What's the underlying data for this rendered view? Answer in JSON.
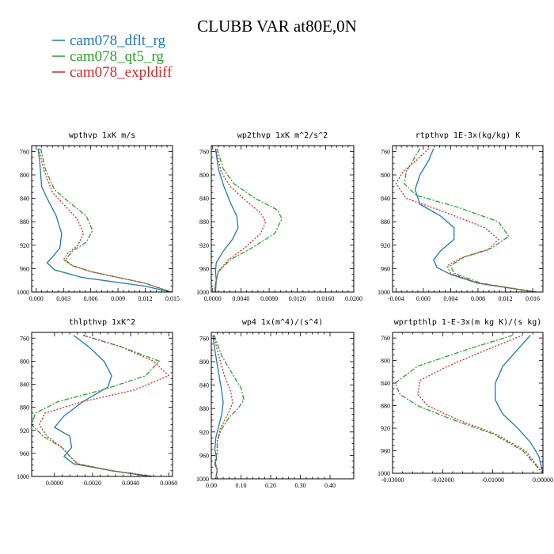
{
  "figure": {
    "title": "CLUBB VAR at80E,0N",
    "legend": [
      {
        "label": "cam078_dflt_rg",
        "color": "#1f77b4"
      },
      {
        "label": "cam078_qt5_rg",
        "color": "#2ca02c"
      },
      {
        "label": "cam078_expldiff",
        "color": "#d62728"
      }
    ]
  },
  "chart_data": [
    {
      "type": "line",
      "title": "wpthvp  1xK m/s",
      "xlim": [
        -0.0005,
        0.015
      ],
      "ylim": [
        1000,
        750
      ],
      "xticks": [
        0.0,
        0.003,
        0.006,
        0.009,
        0.012,
        0.015
      ],
      "xtick_labels": [
        "0.000",
        "0.003",
        "0.006",
        "0.009",
        "0.012",
        "0.015"
      ],
      "yticks": [
        760,
        800,
        840,
        880,
        920,
        960,
        1000
      ],
      "ytick_labels": [
        "760",
        "800",
        "840",
        "880",
        "920",
        "960",
        "1000"
      ],
      "series": [
        {
          "name": "cam078_dflt_rg",
          "color": "#1f77b4",
          "dash": "",
          "x": [
            0.0002,
            0.0004,
            0.0006,
            0.0012,
            0.0022,
            0.0028,
            0.0026,
            0.0018,
            0.0012,
            0.002,
            0.005,
            0.012,
            0.0148
          ],
          "y": [
            755,
            780,
            820,
            840,
            870,
            900,
            925,
            940,
            950,
            962,
            975,
            990,
            1000
          ]
        },
        {
          "name": "cam078_qt5_rg",
          "color": "#2ca02c",
          "dash": "6,2,2,2",
          "x": [
            0.0005,
            0.001,
            0.002,
            0.0035,
            0.0055,
            0.0062,
            0.0055,
            0.004,
            0.0032,
            0.004,
            0.006,
            0.012,
            0.0148
          ],
          "y": [
            755,
            790,
            825,
            845,
            870,
            895,
            915,
            930,
            945,
            955,
            965,
            985,
            1000
          ]
        },
        {
          "name": "cam078_expldiff",
          "color": "#d62728",
          "dash": "2,2",
          "x": [
            0.0003,
            0.0008,
            0.0018,
            0.003,
            0.0045,
            0.0052,
            0.0046,
            0.0034,
            0.003,
            0.004,
            0.006,
            0.012,
            0.0149
          ],
          "y": [
            755,
            790,
            830,
            850,
            875,
            900,
            920,
            935,
            945,
            955,
            965,
            985,
            1000
          ]
        }
      ]
    },
    {
      "type": "line",
      "title": "wp2thvp  1xK m^2/s^2",
      "xlim": [
        -0.0002,
        0.02
      ],
      "ylim": [
        1000,
        750
      ],
      "xticks": [
        0.0,
        0.004,
        0.008,
        0.012,
        0.016,
        0.02
      ],
      "xtick_labels": [
        "0.0000",
        "0.0040",
        "0.0080",
        "0.0120",
        "0.0160",
        "0.0200"
      ],
      "yticks": [
        760,
        800,
        840,
        880,
        920,
        960,
        1000
      ],
      "ytick_labels": [
        "760",
        "800",
        "840",
        "880",
        "920",
        "960",
        "1000"
      ],
      "series": [
        {
          "name": "cam078_dflt_rg",
          "color": "#1f77b4",
          "dash": "",
          "x": [
            0.0004,
            0.0008,
            0.0016,
            0.0026,
            0.0034,
            0.0036,
            0.0028,
            0.0015,
            0.0005,
            0.0004,
            0.0005,
            0.0004
          ],
          "y": [
            755,
            790,
            820,
            850,
            870,
            890,
            910,
            930,
            950,
            965,
            980,
            1000
          ]
        },
        {
          "name": "cam078_qt5_rg",
          "color": "#2ca02c",
          "dash": "6,2,2,2",
          "x": [
            0.0006,
            0.0015,
            0.003,
            0.006,
            0.0092,
            0.0098,
            0.0088,
            0.0055,
            0.0025,
            0.0008,
            0.0004,
            0.0003
          ],
          "y": [
            755,
            790,
            815,
            840,
            860,
            875,
            900,
            925,
            945,
            965,
            985,
            1000
          ]
        },
        {
          "name": "cam078_expldiff",
          "color": "#d62728",
          "dash": "2,2",
          "x": [
            0.0004,
            0.0012,
            0.0025,
            0.0048,
            0.0068,
            0.0075,
            0.0068,
            0.0045,
            0.0022,
            0.0008,
            0.0004,
            0.0003
          ],
          "y": [
            755,
            795,
            820,
            845,
            865,
            880,
            900,
            925,
            945,
            965,
            985,
            1000
          ]
        }
      ]
    },
    {
      "type": "line",
      "title": "rtpthvp  1E-3x(kg/kg) K",
      "xlim": [
        -0.0045,
        0.0175
      ],
      "ylim": [
        1000,
        750
      ],
      "xticks": [
        -0.004,
        0.0,
        0.004,
        0.008,
        0.012,
        0.016
      ],
      "xtick_labels": [
        "-0.004",
        "0.000",
        "0.004",
        "0.008",
        "0.012",
        "0.016"
      ],
      "yticks": [
        760,
        800,
        840,
        880,
        920,
        960,
        1000
      ],
      "ytick_labels": [
        "760",
        "800",
        "840",
        "880",
        "920",
        "960",
        "1000"
      ],
      "series": [
        {
          "name": "cam078_dflt_rg",
          "color": "#1f77b4",
          "dash": "",
          "x": [
            0.0015,
            0.0008,
            -0.0005,
            -0.0012,
            -0.0005,
            0.0025,
            0.0045,
            0.0045,
            0.0025,
            0.0015,
            0.002,
            0.004,
            0.008,
            0.0165
          ],
          "y": [
            755,
            775,
            800,
            825,
            850,
            870,
            890,
            910,
            930,
            945,
            958,
            970,
            985,
            1000
          ]
        },
        {
          "name": "cam078_qt5_rg",
          "color": "#2ca02c",
          "dash": "6,2,2,2",
          "x": [
            -0.0005,
            -0.0015,
            -0.0025,
            -0.0028,
            -0.001,
            0.005,
            0.011,
            0.0125,
            0.01,
            0.006,
            0.004,
            0.0045,
            0.0085,
            0.0165
          ],
          "y": [
            755,
            775,
            795,
            815,
            835,
            855,
            880,
            905,
            925,
            940,
            955,
            968,
            985,
            1000
          ]
        },
        {
          "name": "cam078_expldiff",
          "color": "#d62728",
          "dash": "2,2",
          "x": [
            0.0008,
            -0.001,
            -0.003,
            -0.004,
            -0.0025,
            0.0035,
            0.009,
            0.011,
            0.0095,
            0.0055,
            0.0035,
            0.004,
            0.008,
            0.0165
          ],
          "y": [
            755,
            775,
            795,
            815,
            840,
            865,
            890,
            910,
            928,
            942,
            955,
            968,
            985,
            1000
          ]
        }
      ]
    },
    {
      "type": "line",
      "title": "thlpthvp  1xK^2",
      "xlim": [
        -0.0012,
        0.0062
      ],
      "ylim": [
        1000,
        750
      ],
      "xticks": [
        0.0,
        0.002,
        0.004,
        0.006
      ],
      "xtick_labels": [
        "0.0000",
        "0.0020",
        "0.0040",
        "0.0060"
      ],
      "yticks": [
        760,
        800,
        840,
        880,
        920,
        960,
        1000
      ],
      "ytick_labels": [
        "760",
        "800",
        "840",
        "880",
        "920",
        "960",
        "1000"
      ],
      "series": [
        {
          "name": "cam078_dflt_rg",
          "color": "#1f77b4",
          "dash": "",
          "x": [
            0.001,
            0.0018,
            0.0026,
            0.003,
            0.0028,
            0.0015,
            0.0005,
            0.0,
            0.0008,
            0.0009,
            0.0005,
            0.001,
            0.003,
            0.005
          ],
          "y": [
            755,
            775,
            800,
            825,
            845,
            870,
            895,
            915,
            930,
            950,
            965,
            978,
            990,
            1000
          ]
        },
        {
          "name": "cam078_qt5_rg",
          "color": "#2ca02c",
          "dash": "6,2,2,2",
          "x": [
            0.0015,
            0.0035,
            0.0055,
            0.0048,
            0.0025,
            0.0002,
            -0.001,
            -0.0012,
            -0.0006,
            0.0004,
            0.0008,
            0.0012,
            0.003,
            0.0052
          ],
          "y": [
            755,
            775,
            800,
            825,
            850,
            870,
            890,
            910,
            930,
            950,
            965,
            978,
            990,
            1000
          ]
        },
        {
          "name": "cam078_expldiff",
          "color": "#d62728",
          "dash": "2,2",
          "x": [
            0.0015,
            0.0035,
            0.0052,
            0.006,
            0.0042,
            0.0015,
            -0.0005,
            -0.0008,
            -0.0004,
            0.0004,
            0.0008,
            0.0012,
            0.003,
            0.0052
          ],
          "y": [
            755,
            775,
            800,
            825,
            850,
            870,
            890,
            910,
            930,
            950,
            965,
            978,
            990,
            1000
          ]
        }
      ]
    },
    {
      "type": "line",
      "title": "wp4  1x(m^4)/(s^4)",
      "xlim": [
        0.0,
        0.48
      ],
      "ylim": [
        1000,
        750
      ],
      "xticks": [
        0.0,
        0.1,
        0.2,
        0.3,
        0.4
      ],
      "xtick_labels": [
        "0.00",
        "0.10",
        "0.20",
        "0.30",
        "0.40"
      ],
      "yticks": [
        760,
        800,
        840,
        880,
        920,
        960,
        1000
      ],
      "ytick_labels": [
        "760",
        "800",
        "840",
        "880",
        "920",
        "960",
        "1000"
      ],
      "series": [
        {
          "name": "cam078_dflt_rg",
          "color": "#1f77b4",
          "dash": "",
          "x": [
            0.005,
            0.015,
            0.025,
            0.035,
            0.04,
            0.035,
            0.025,
            0.015,
            0.012,
            0.018,
            0.012,
            0.02,
            0.015
          ],
          "y": [
            755,
            790,
            820,
            850,
            870,
            890,
            910,
            930,
            950,
            965,
            975,
            985,
            1000
          ]
        },
        {
          "name": "cam078_qt5_rg",
          "color": "#2ca02c",
          "dash": "6,2,2,2",
          "x": [
            0.01,
            0.035,
            0.07,
            0.1,
            0.11,
            0.09,
            0.06,
            0.035,
            0.02,
            0.02,
            0.012,
            0.02,
            0.015
          ],
          "y": [
            755,
            790,
            820,
            845,
            865,
            880,
            895,
            915,
            935,
            955,
            970,
            985,
            1000
          ]
        },
        {
          "name": "cam078_expldiff",
          "color": "#d62728",
          "dash": "2,2",
          "x": [
            0.008,
            0.025,
            0.045,
            0.065,
            0.072,
            0.06,
            0.045,
            0.03,
            0.02,
            0.02,
            0.012,
            0.02,
            0.015
          ],
          "y": [
            755,
            790,
            825,
            850,
            870,
            885,
            900,
            915,
            935,
            955,
            970,
            985,
            1000
          ]
        }
      ]
    },
    {
      "type": "line",
      "title": "wprtpthlp  1-E-3x(m kg K)/(s kg)",
      "xlim": [
        -0.03,
        0.0
      ],
      "ylim": [
        1000,
        750
      ],
      "xticks": [
        -0.03,
        -0.02,
        -0.01,
        0.0
      ],
      "xtick_labels": [
        "-0.03000",
        "-0.02000",
        "-0.01000",
        "0.00000"
      ],
      "yticks": [
        760,
        800,
        840,
        880,
        920,
        960,
        1000
      ],
      "ytick_labels": [
        "760",
        "800",
        "840",
        "880",
        "920",
        "960",
        "1000"
      ],
      "series": [
        {
          "name": "cam078_dflt_rg",
          "color": "#1f77b4",
          "dash": "",
          "x": [
            -0.0025,
            -0.005,
            -0.008,
            -0.0095,
            -0.0095,
            -0.008,
            -0.005,
            -0.0025,
            -0.0008,
            0.0
          ],
          "y": [
            755,
            780,
            810,
            840,
            870,
            895,
            920,
            945,
            970,
            1000
          ]
        },
        {
          "name": "cam078_qt5_rg",
          "color": "#2ca02c",
          "dash": "6,2,2,2",
          "x": [
            -0.006,
            -0.015,
            -0.025,
            -0.0295,
            -0.0285,
            -0.025,
            -0.018,
            -0.01,
            -0.004,
            0.0
          ],
          "y": [
            755,
            780,
            810,
            840,
            860,
            880,
            905,
            930,
            960,
            1000
          ]
        },
        {
          "name": "cam078_expldiff",
          "color": "#d62728",
          "dash": "2,2",
          "x": [
            -0.004,
            -0.011,
            -0.019,
            -0.0245,
            -0.025,
            -0.023,
            -0.017,
            -0.0095,
            -0.0035,
            0.0
          ],
          "y": [
            755,
            780,
            810,
            835,
            860,
            880,
            905,
            930,
            960,
            1000
          ]
        }
      ]
    }
  ]
}
